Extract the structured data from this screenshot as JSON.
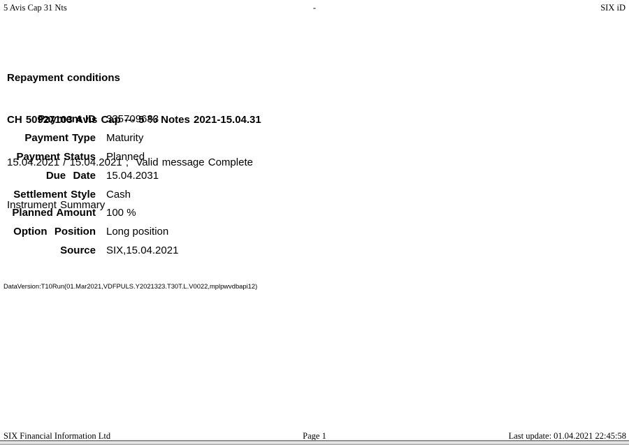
{
  "header": {
    "left": "5 Avis Cap 31 Nts",
    "center": "-",
    "right": "SIX iD"
  },
  "title": {
    "line1": "Repayment conditions",
    "line2": "CH 50927103 Avis Cap --- 5 % Notes 2021-15.04.31",
    "line3": "15.04.2021 / 15.04.2021 ;  Valid message Complete",
    "line4": "Instrument Summary"
  },
  "summary": {
    "rows": [
      {
        "label": "Payment ID",
        "value": "335709683"
      },
      {
        "label": "Payment Type",
        "value": "Maturity"
      },
      {
        "label": "Payment Status",
        "value": "Planned"
      },
      {
        "label": "Due  Date",
        "value": "15.04.2031"
      },
      {
        "label": "Settlement Style",
        "value": "Cash"
      },
      {
        "label": "Planned Amount",
        "value": "100 %"
      },
      {
        "label": "Option  Position",
        "value": "Long position"
      },
      {
        "label": "Source",
        "value": "SIX,15.04.2021"
      }
    ]
  },
  "data_version": "DataVersion:T10Run(01.Mar2021,VDFPULS.Y2021323.T30T.L.V0022,mplpwvdbapi12)",
  "footer": {
    "left": "SIX Financial Information Ltd",
    "center": "Page 1",
    "right": "Last update: 01.04.2021 22:45:58"
  }
}
